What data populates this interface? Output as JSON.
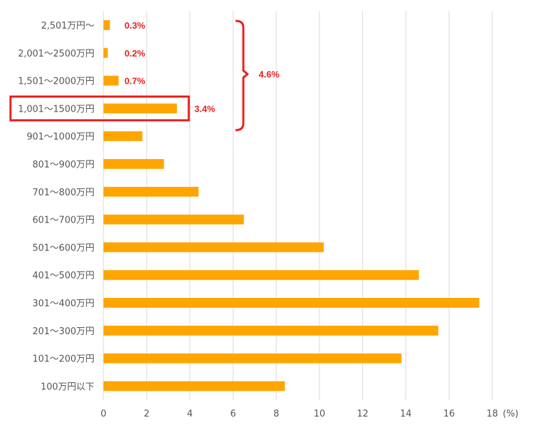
{
  "chart_data": {
    "type": "bar",
    "orientation": "horizontal",
    "categories": [
      "2,501万円～",
      "2,001～2500万円",
      "1,501～2000万円",
      "1,001～1500万円",
      "901～1000万円",
      "801～900万円",
      "701～800万円",
      "601～700万円",
      "501～600万円",
      "401～500万円",
      "301～400万円",
      "201～300万円",
      "101～200万円",
      "100万円以下"
    ],
    "values": [
      0.3,
      0.2,
      0.7,
      3.4,
      1.8,
      2.8,
      4.4,
      6.5,
      10.2,
      14.6,
      17.4,
      15.5,
      13.8,
      8.4
    ],
    "x_ticks": [
      "0",
      "2",
      "4",
      "6",
      "8",
      "10",
      "12",
      "14",
      "16",
      "18"
    ],
    "xlim": [
      0,
      18
    ],
    "x_unit": "(%)",
    "data_labels": [
      {
        "category_index": 0,
        "text": "0.3%"
      },
      {
        "category_index": 1,
        "text": "0.2%"
      },
      {
        "category_index": 2,
        "text": "0.7%"
      },
      {
        "category_index": 3,
        "text": "3.4%"
      }
    ],
    "bracket_label": "4.6%",
    "bracket_range": [
      0,
      3
    ],
    "highlight_index": 3,
    "grid": "vertical",
    "colors": {
      "bar": "#FFA500",
      "annotation": "#E8201E",
      "highlight": "#E8201E",
      "grid": "#D9D9D9",
      "text": "#555555"
    }
  }
}
